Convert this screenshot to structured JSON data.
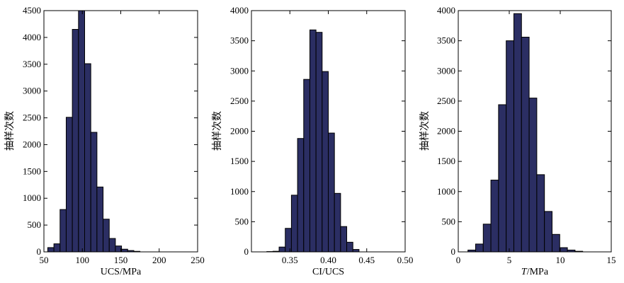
{
  "chart_data": [
    {
      "type": "bar",
      "subtype": "histogram",
      "xlabel": "UCS/MPa",
      "ylabel": "抽样次数",
      "xlim": [
        50,
        250
      ],
      "ylim": [
        0,
        4500
      ],
      "xticks": [
        50,
        100,
        150,
        200,
        250
      ],
      "yticks": [
        0,
        500,
        1000,
        1500,
        2000,
        2500,
        3000,
        3500,
        4000,
        4500
      ],
      "bar_color": "#2b2e63",
      "bins": [
        {
          "x0": 55,
          "x1": 63,
          "value": 80
        },
        {
          "x0": 63,
          "x1": 71,
          "value": 150
        },
        {
          "x0": 71,
          "x1": 79,
          "value": 790
        },
        {
          "x0": 79,
          "x1": 87,
          "value": 2510
        },
        {
          "x0": 87,
          "x1": 95,
          "value": 4150
        },
        {
          "x0": 95,
          "x1": 103,
          "value": 4500
        },
        {
          "x0": 103,
          "x1": 111,
          "value": 3510
        },
        {
          "x0": 111,
          "x1": 119,
          "value": 2230
        },
        {
          "x0": 119,
          "x1": 127,
          "value": 1210
        },
        {
          "x0": 127,
          "x1": 135,
          "value": 610
        },
        {
          "x0": 135,
          "x1": 143,
          "value": 250
        },
        {
          "x0": 143,
          "x1": 151,
          "value": 110
        },
        {
          "x0": 151,
          "x1": 159,
          "value": 50
        },
        {
          "x0": 159,
          "x1": 167,
          "value": 25
        },
        {
          "x0": 167,
          "x1": 175,
          "value": 10
        }
      ]
    },
    {
      "type": "bar",
      "subtype": "histogram",
      "xlabel": "CI/UCS",
      "ylabel": "抽样次数",
      "xlim": [
        0.3,
        0.5
      ],
      "ylim": [
        0,
        4000
      ],
      "xticks": [
        "0.35",
        "0.40",
        "0.45",
        "0.50"
      ],
      "yticks": [
        0,
        500,
        1000,
        1500,
        2000,
        2500,
        3000,
        3500,
        4000
      ],
      "bar_color": "#2b2e63",
      "bins": [
        {
          "x0": 0.32,
          "x1": 0.328,
          "value": 5
        },
        {
          "x0": 0.328,
          "x1": 0.336,
          "value": 10
        },
        {
          "x0": 0.336,
          "x1": 0.344,
          "value": 80
        },
        {
          "x0": 0.344,
          "x1": 0.352,
          "value": 390
        },
        {
          "x0": 0.352,
          "x1": 0.36,
          "value": 940
        },
        {
          "x0": 0.36,
          "x1": 0.368,
          "value": 1880
        },
        {
          "x0": 0.368,
          "x1": 0.376,
          "value": 2860
        },
        {
          "x0": 0.376,
          "x1": 0.384,
          "value": 3680
        },
        {
          "x0": 0.384,
          "x1": 0.392,
          "value": 3640
        },
        {
          "x0": 0.392,
          "x1": 0.4,
          "value": 2990
        },
        {
          "x0": 0.4,
          "x1": 0.408,
          "value": 1970
        },
        {
          "x0": 0.408,
          "x1": 0.416,
          "value": 970
        },
        {
          "x0": 0.416,
          "x1": 0.424,
          "value": 420
        },
        {
          "x0": 0.424,
          "x1": 0.432,
          "value": 160
        },
        {
          "x0": 0.432,
          "x1": 0.44,
          "value": 40
        }
      ]
    },
    {
      "type": "bar",
      "subtype": "histogram",
      "xlabel_italic": "T",
      "xlabel_rest": "/MPa",
      "ylabel": "抽样次数",
      "xlim": [
        0,
        15
      ],
      "ylim": [
        0,
        4000
      ],
      "xticks": [
        0,
        5,
        10,
        15
      ],
      "yticks": [
        0,
        500,
        1000,
        1500,
        2000,
        2500,
        3000,
        3500,
        4000
      ],
      "bar_color": "#2b2e63",
      "bins": [
        {
          "x0": 0.95,
          "x1": 1.7,
          "value": 30
        },
        {
          "x0": 1.7,
          "x1": 2.45,
          "value": 130
        },
        {
          "x0": 2.45,
          "x1": 3.2,
          "value": 460
        },
        {
          "x0": 3.2,
          "x1": 3.95,
          "value": 1190
        },
        {
          "x0": 3.95,
          "x1": 4.7,
          "value": 2440
        },
        {
          "x0": 4.7,
          "x1": 5.45,
          "value": 3500
        },
        {
          "x0": 5.45,
          "x1": 6.2,
          "value": 3950
        },
        {
          "x0": 6.2,
          "x1": 6.95,
          "value": 3560
        },
        {
          "x0": 6.95,
          "x1": 7.7,
          "value": 2550
        },
        {
          "x0": 7.7,
          "x1": 8.45,
          "value": 1280
        },
        {
          "x0": 8.45,
          "x1": 9.2,
          "value": 670
        },
        {
          "x0": 9.2,
          "x1": 9.95,
          "value": 290
        },
        {
          "x0": 9.95,
          "x1": 10.7,
          "value": 70
        },
        {
          "x0": 10.7,
          "x1": 11.45,
          "value": 30
        },
        {
          "x0": 11.45,
          "x1": 12.2,
          "value": 10
        }
      ]
    }
  ]
}
